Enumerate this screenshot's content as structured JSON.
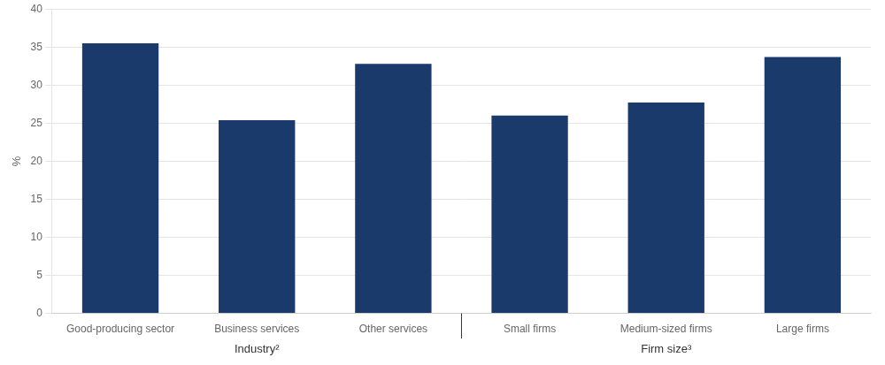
{
  "chart_data": {
    "type": "bar",
    "categories": [
      "Good-producing sector",
      "Business services",
      "Other services",
      "Small firms",
      "Medium-sized firms",
      "Large firms"
    ],
    "values": [
      35.5,
      25.4,
      32.8,
      26.0,
      27.7,
      33.7
    ],
    "color": "#1a3a6b",
    "ylabel": "%",
    "ylim": [
      0,
      40
    ],
    "yticks": [
      0,
      5,
      10,
      15,
      20,
      25,
      30,
      35,
      40
    ],
    "grid": true,
    "annotations": [
      {
        "text": "Industry²",
        "categories": [
          "Good-producing sector",
          "Business services",
          "Other services"
        ]
      },
      {
        "text": "Firm size³",
        "categories": [
          "Small firms",
          "Medium-sized firms",
          "Large firms"
        ]
      }
    ]
  }
}
